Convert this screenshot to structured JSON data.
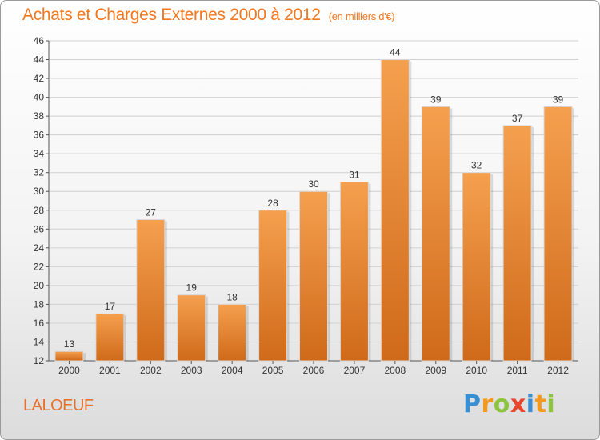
{
  "chart_data": {
    "type": "bar",
    "title": "Achats et Charges Externes 2000 à 2012",
    "unit_label": "(en milliers d'€)",
    "categories": [
      "2000",
      "2001",
      "2002",
      "2003",
      "2004",
      "2005",
      "2006",
      "2007",
      "2008",
      "2009",
      "2010",
      "2011",
      "2012"
    ],
    "values": [
      13,
      17,
      27,
      19,
      18,
      28,
      30,
      31,
      44,
      39,
      32,
      37,
      39
    ],
    "ylim": [
      12,
      46
    ],
    "yticks": [
      12,
      14,
      16,
      18,
      20,
      22,
      24,
      26,
      28,
      30,
      32,
      34,
      36,
      38,
      40,
      42,
      44,
      46
    ],
    "grid": true,
    "bar_color_top": "#f5a04e",
    "bar_color_bottom": "#cf6a1a"
  },
  "footer": {
    "commune": "LALOEUF",
    "brand": "Proxiti",
    "brand_letters": [
      {
        "ch": "P",
        "color": "#3a8fd0"
      },
      {
        "ch": "r",
        "color": "#f29a1f"
      },
      {
        "ch": "o",
        "color": "#8cc43d"
      },
      {
        "ch": "x",
        "color": "#e8452c"
      },
      {
        "ch": "i",
        "color": "#3a8fd0"
      },
      {
        "ch": "t",
        "color": "#f29a1f"
      },
      {
        "ch": "i",
        "color": "#8cc43d"
      }
    ]
  },
  "colors": {
    "accent": "#f07820",
    "axis": "#555555",
    "grid": "#d0d0d0"
  }
}
